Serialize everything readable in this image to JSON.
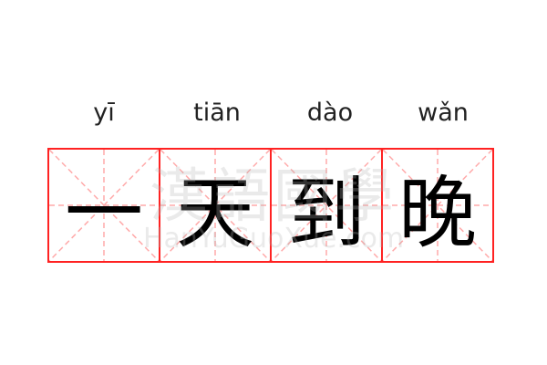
{
  "pinyin": [
    "yī",
    "tiān",
    "dào",
    "wǎn"
  ],
  "characters": [
    "一",
    "天",
    "到",
    "晚"
  ],
  "watermark": {
    "logo": "漢語國學",
    "site": "HanYuGuoXue.com"
  },
  "colors": {
    "grid_border": "#ff2222",
    "guide_lines": "#ffaaaa",
    "text": "#000000"
  }
}
